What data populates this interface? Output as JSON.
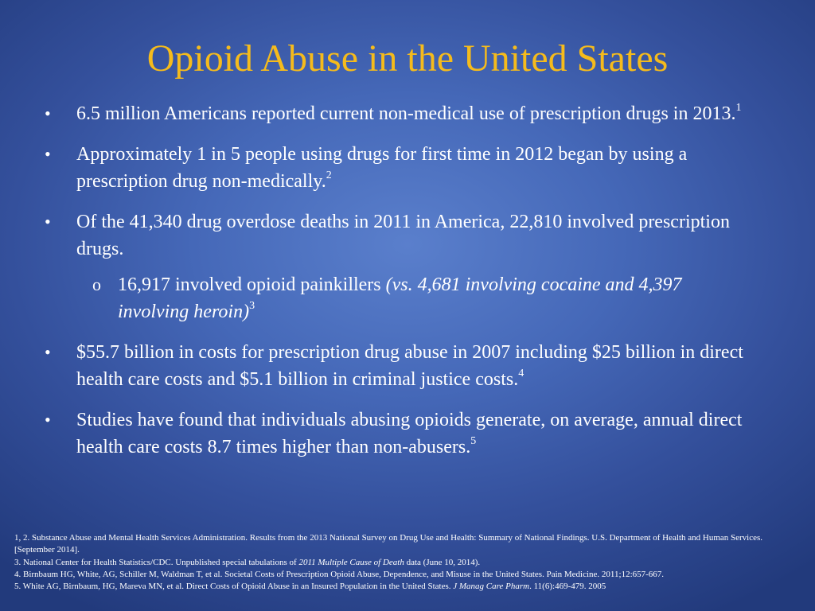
{
  "slide": {
    "title": "Opioid Abuse in the United States"
  },
  "bullets": [
    {
      "marker": "•",
      "text": "6.5 million Americans reported current non-medical use of prescription drugs in 2013.",
      "ref": "1"
    },
    {
      "marker": "•",
      "text": "Approximately 1 in 5 people using drugs for first time in 2012 began by using a prescription drug non-medically.",
      "ref": "2"
    },
    {
      "marker": "•",
      "text": "Of the 41,340 drug overdose deaths in 2011 in America, 22,810 involved prescription drugs.",
      "ref": ""
    }
  ],
  "sub_bullet": {
    "marker": "o",
    "text": "16,917 involved opioid painkillers ",
    "italic_text": "(vs. 4,681 involving cocaine and 4,397 involving heroin)",
    "ref": "3"
  },
  "bullets_after": [
    {
      "marker": "•",
      "text": "$55.7 billion in costs for prescription drug abuse in 2007 including $25 billion in direct health care costs and $5.1 billion in criminal justice costs.",
      "ref": "4"
    },
    {
      "marker": "•",
      "text": "Studies have found that individuals abusing opioids generate, on average, annual direct health care costs 8.7 times higher than non-abusers.",
      "ref": "5"
    }
  ],
  "footnotes": {
    "fn12": "1, 2. Substance Abuse and Mental Health Services Administration. Results from the 2013 National Survey on Drug Use and Health: Summary of National Findings. U.S. Department of Health and Human Services. [September 2014].",
    "fn3_before": "3. National Center for Health Statistics/CDC. Unpublished special tabulations of ",
    "fn3_italic": "2011 Multiple Cause of Death",
    "fn3_after": " data (June 10, 2014).",
    "fn4": "4. Birnbaum HG, White, AG, Schiller M, Waldman T, et al. Societal Costs of Prescription Opioid Abuse, Dependence, and Misuse in the United States. Pain Medicine. 2011;12:657-667.",
    "fn5_before": "5. White AG, Birnbaum, HG, Mareva MN, et al. Direct Costs of Opioid Abuse in an Insured Population in the United States. ",
    "fn5_italic": "J  Manag Care Pharm",
    "fn5_after": ". 11(6):469-479. 2005"
  }
}
